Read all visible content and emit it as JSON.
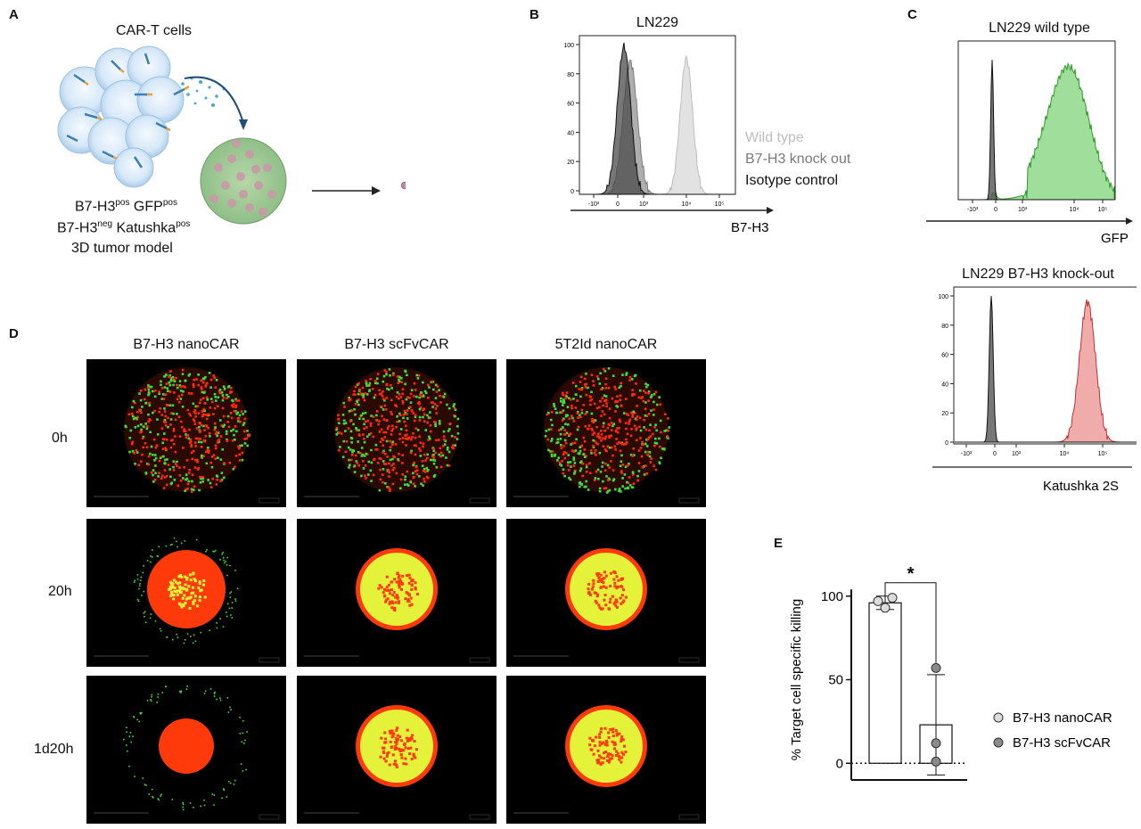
{
  "panels": {
    "a": {
      "label": "A",
      "cart_label": "CAR-T cells",
      "line1": {
        "a": "B7-H3",
        "a_sup": "pos",
        "b": " GFP",
        "b_sup": "pos"
      },
      "line2": {
        "a": "B7-H3",
        "a_sup": "neg",
        "b": " Katushka",
        "b_sup": "pos"
      },
      "line3": "3D tumor model"
    },
    "b": {
      "label": "B",
      "title": "LN229",
      "xlabel": "B7-H3",
      "legend": [
        "Wild type",
        "B7-H3 knock out",
        "Isotype control"
      ],
      "legend_colors": [
        "#bdbdbd",
        "#7a7a7a",
        "#111111"
      ],
      "yticks": [
        "0",
        "20",
        "40",
        "60",
        "80",
        "100"
      ],
      "xticks": [
        "-10³",
        "0",
        "10³",
        "10⁴",
        "10⁵"
      ]
    },
    "c": {
      "label": "C",
      "top_title": "LN229 wild type",
      "top_xlabel": "GFP",
      "bottom_title": "LN229 B7-H3 knock-out",
      "bottom_xlabel": "Katushka 2S",
      "yticks": [
        "0",
        "20",
        "40",
        "60",
        "80",
        "100"
      ],
      "xticks": [
        "-10³",
        "0",
        "10³",
        "10⁴",
        "10⁵"
      ],
      "gfp_color": "#7fd37a",
      "katushka_color": "#e88a8a"
    },
    "d": {
      "label": "D",
      "columns": [
        "B7-H3 nanoCAR",
        "B7-H3 scFvCAR",
        "5T2Id nanoCAR"
      ],
      "rows": [
        "0h",
        "20h",
        "1d20h"
      ]
    },
    "e": {
      "label": "E",
      "significance": "*"
    }
  },
  "chart_data": [
    {
      "type": "histogram",
      "panel": "B",
      "title": "LN229",
      "xlabel": "B7-H3",
      "x_scale": "biexponential",
      "ylim": [
        0,
        100
      ],
      "series": [
        {
          "name": "Wild type",
          "peak_x": "10⁴",
          "peak_y": 92
        },
        {
          "name": "B7-H3 knock out",
          "peak_x": "~10²",
          "peak_y": 92
        },
        {
          "name": "Isotype control",
          "peak_x": "~10²",
          "peak_y": 100
        }
      ]
    },
    {
      "type": "histogram",
      "panel": "C-top",
      "title": "LN229 wild type",
      "xlabel": "GFP",
      "x_scale": "biexponential",
      "series": [
        {
          "name": "Isotype",
          "peak_x": "~-10²"
        },
        {
          "name": "GFP",
          "peak_x": "~10⁴"
        }
      ]
    },
    {
      "type": "histogram",
      "panel": "C-bottom",
      "title": "LN229 B7-H3 knock-out",
      "xlabel": "Katushka 2S",
      "x_scale": "biexponential",
      "ylim": [
        0,
        100
      ],
      "series": [
        {
          "name": "Isotype",
          "peak_x": "~-10²",
          "peak_y": 100
        },
        {
          "name": "Katushka",
          "peak_x": "~10⁴·⁷",
          "peak_y": 96
        }
      ]
    },
    {
      "type": "bar",
      "panel": "E",
      "ylabel": "% Target cell specific killing",
      "ylim": [
        -10,
        110
      ],
      "yticks": [
        "0",
        "50",
        "100"
      ],
      "categories": [
        "B7-H3 nanoCAR",
        "B7-H3 scFvCAR"
      ],
      "values": [
        96,
        23
      ],
      "errors": [
        4,
        30
      ],
      "points": [
        [
          97,
          99,
          93
        ],
        [
          57,
          12,
          1
        ]
      ],
      "colors": [
        "#dcdcdc",
        "#8a8a8a"
      ],
      "legend": [
        "B7-H3 nanoCAR",
        "B7-H3 scFvCAR"
      ]
    }
  ]
}
